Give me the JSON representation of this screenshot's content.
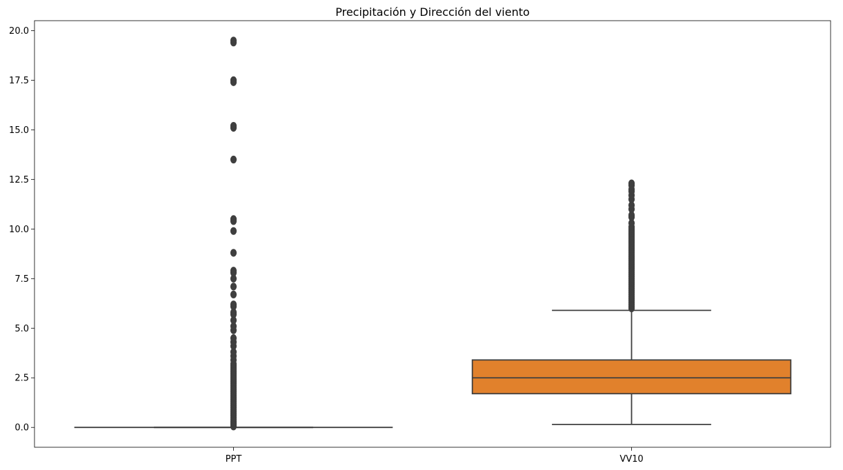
{
  "chart_data": {
    "type": "box",
    "title": "Precipitación y Dirección del viento",
    "xlabel": "",
    "ylabel": "",
    "ylim": [
      -1.0,
      20.5
    ],
    "yticks": [
      0.0,
      2.5,
      5.0,
      7.5,
      10.0,
      12.5,
      15.0,
      17.5,
      20.0
    ],
    "ytick_labels": [
      "0.0",
      "2.5",
      "5.0",
      "7.5",
      "10.0",
      "12.5",
      "15.0",
      "17.5",
      "20.0"
    ],
    "grid": false,
    "categories": [
      "PPT",
      "VV10"
    ],
    "series": [
      {
        "name": "PPT",
        "color": "#3274a1",
        "q1": 0.0,
        "median": 0.0,
        "q3": 0.0,
        "whisker_low": 0.0,
        "whisker_high": 0.0,
        "outliers": [
          0.05,
          0.1,
          0.15,
          0.2,
          0.25,
          0.3,
          0.4,
          0.5,
          0.6,
          0.7,
          0.8,
          0.9,
          1.0,
          1.1,
          1.2,
          1.3,
          1.4,
          1.5,
          1.6,
          1.7,
          1.8,
          1.9,
          2.0,
          2.1,
          2.2,
          2.3,
          2.4,
          2.5,
          2.6,
          2.7,
          2.8,
          2.9,
          3.0,
          3.1,
          3.2,
          3.4,
          3.6,
          3.8,
          4.1,
          4.3,
          4.5,
          4.9,
          5.1,
          5.4,
          5.7,
          5.8,
          6.1,
          6.2,
          6.7,
          7.1,
          7.5,
          7.8,
          7.9,
          8.8,
          9.9,
          10.4,
          10.5,
          13.5,
          15.1,
          15.2,
          17.4,
          17.5,
          19.4,
          19.5
        ]
      },
      {
        "name": "VV10",
        "color": "#e1812c",
        "q1": 1.7,
        "median": 2.5,
        "q3": 3.4,
        "whisker_low": 0.15,
        "whisker_high": 5.9,
        "outliers": [
          6.0,
          6.1,
          6.2,
          6.3,
          6.4,
          6.5,
          6.6,
          6.7,
          6.8,
          6.9,
          7.0,
          7.1,
          7.2,
          7.3,
          7.4,
          7.5,
          7.6,
          7.7,
          7.8,
          7.9,
          8.0,
          8.1,
          8.2,
          8.3,
          8.4,
          8.5,
          8.6,
          8.7,
          8.8,
          8.9,
          9.0,
          9.1,
          9.2,
          9.3,
          9.4,
          9.5,
          9.6,
          9.7,
          9.8,
          9.9,
          10.0,
          10.1,
          10.3,
          10.6,
          10.7,
          11.0,
          11.2,
          11.5,
          11.7,
          11.9,
          12.0,
          12.2,
          12.3
        ]
      }
    ]
  }
}
